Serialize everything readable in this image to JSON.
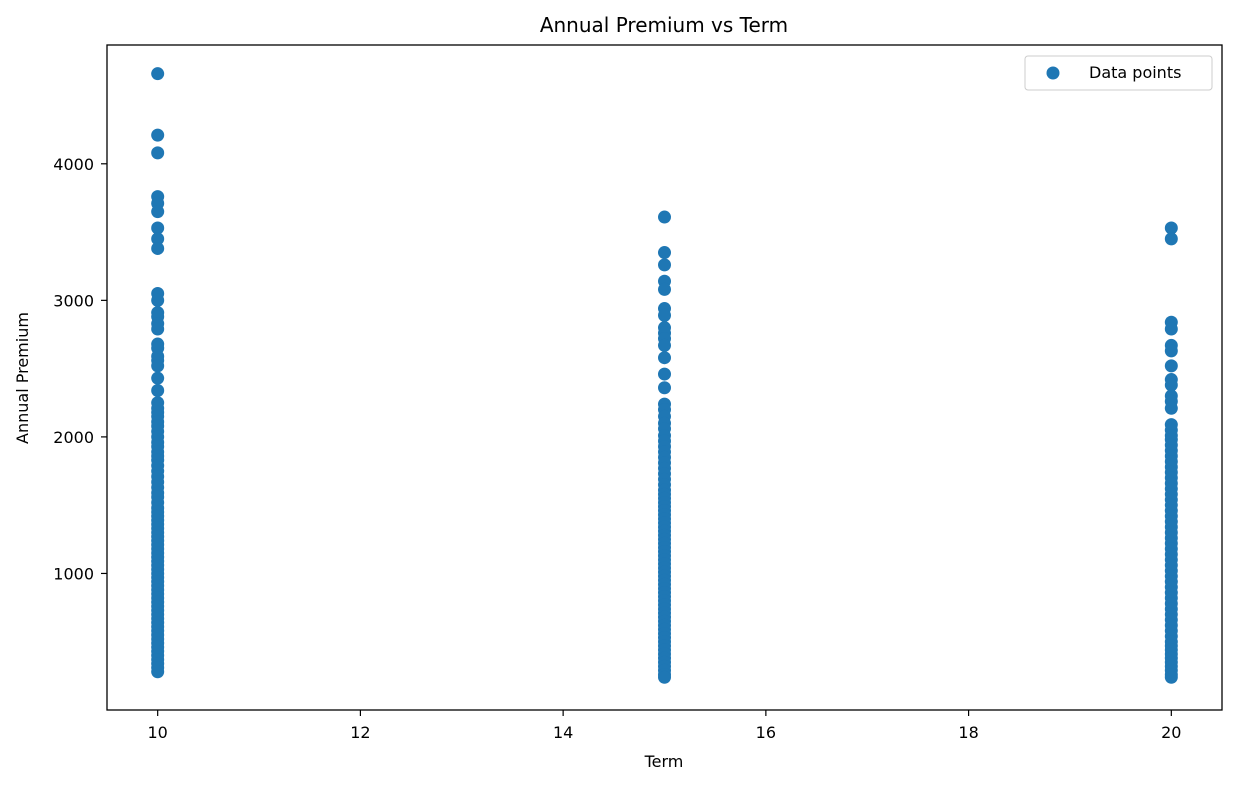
{
  "chart_data": {
    "type": "scatter",
    "title": "Annual Premium vs Term",
    "xlabel": "Term",
    "ylabel": "Annual Premium",
    "xlim": [
      9.5,
      20.5
    ],
    "ylim": [
      0,
      4870
    ],
    "xticks": [
      10,
      12,
      14,
      16,
      18,
      20
    ],
    "yticks": [
      1000,
      2000,
      3000,
      4000
    ],
    "grid": false,
    "legend": {
      "entries": [
        "Data points"
      ],
      "placement": "top-right"
    },
    "color": "#1f77b4",
    "series": [
      {
        "name": "Data points",
        "points": [
          {
            "x": 10,
            "y": [
              4660,
              4210,
              4080,
              3760,
              3710,
              3650,
              3530,
              3450,
              3380,
              3050,
              3000,
              2910,
              2880,
              2830,
              2790,
              2680,
              2650,
              2590,
              2560,
              2520,
              2430,
              2340,
              2250,
              2210,
              2180,
              2150,
              2110,
              2080,
              2040,
              2000,
              1960,
              1930,
              1890,
              1860,
              1830,
              1790,
              1750,
              1710,
              1670,
              1630,
              1590,
              1560,
              1520,
              1480,
              1450,
              1420,
              1390,
              1360,
              1330,
              1300,
              1270,
              1240,
              1210,
              1180,
              1150,
              1120,
              1090,
              1060,
              1030,
              1000,
              970,
              940,
              910,
              880,
              850,
              820,
              790,
              760,
              730,
              700,
              670,
              640,
              610,
              580,
              550,
              520,
              490,
              460,
              430,
              400,
              370,
              340,
              310,
              280
            ]
          },
          {
            "x": 15,
            "y": [
              3610,
              3350,
              3260,
              3140,
              3080,
              2940,
              2890,
              2800,
              2760,
              2720,
              2670,
              2580,
              2460,
              2360,
              2240,
              2200,
              2150,
              2100,
              2060,
              2010,
              1970,
              1930,
              1890,
              1850,
              1810,
              1770,
              1730,
              1690,
              1650,
              1610,
              1580,
              1550,
              1520,
              1490,
              1460,
              1430,
              1400,
              1370,
              1340,
              1310,
              1280,
              1250,
              1220,
              1190,
              1160,
              1130,
              1100,
              1070,
              1040,
              1010,
              980,
              950,
              920,
              890,
              860,
              830,
              800,
              770,
              740,
              710,
              680,
              650,
              620,
              590,
              560,
              530,
              500,
              470,
              440,
              410,
              380,
              350,
              320,
              290,
              260,
              240
            ]
          },
          {
            "x": 20,
            "y": [
              3530,
              3450,
              2840,
              2790,
              2670,
              2630,
              2520,
              2420,
              2380,
              2300,
              2260,
              2210,
              2090,
              2050,
              2010,
              1980,
              1940,
              1900,
              1860,
              1820,
              1780,
              1740,
              1700,
              1660,
              1620,
              1580,
              1540,
              1500,
              1460,
              1420,
              1380,
              1340,
              1300,
              1260,
              1220,
              1180,
              1140,
              1100,
              1060,
              1020,
              980,
              940,
              900,
              860,
              820,
              780,
              740,
              700,
              660,
              620,
              580,
              540,
              500,
              470,
              440,
              410,
              380,
              350,
              320,
              290,
              260,
              240
            ]
          }
        ]
      }
    ]
  }
}
